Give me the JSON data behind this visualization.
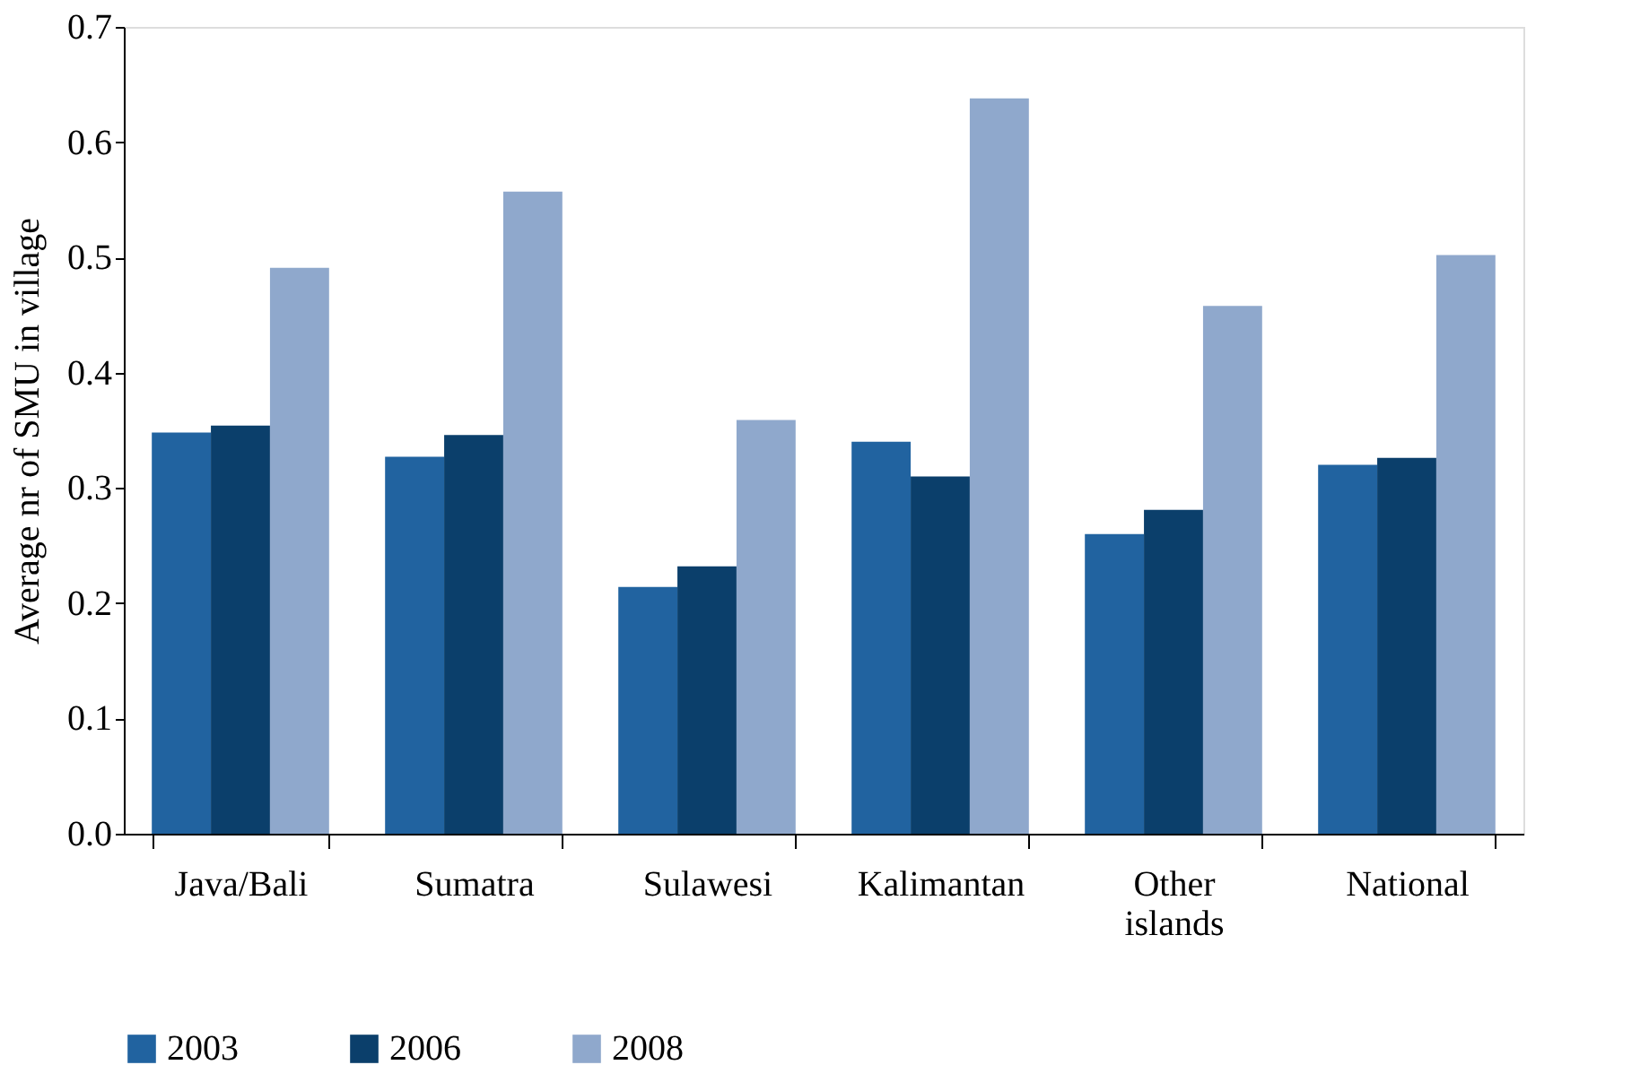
{
  "chart_data": {
    "type": "bar",
    "ylabel": "Average nr of SMU in village",
    "categories": [
      "Java/Bali",
      "Sumatra",
      "Sulawesi",
      "Kalimantan",
      "Other islands",
      "National"
    ],
    "series": [
      {
        "name": "2003",
        "color": "#2163a0",
        "values": [
          0.348,
          0.327,
          0.214,
          0.34,
          0.26,
          0.32
        ]
      },
      {
        "name": "2006",
        "color": "#0b3f6b",
        "values": [
          0.354,
          0.346,
          0.232,
          0.31,
          0.281,
          0.326
        ]
      },
      {
        "name": "2008",
        "color": "#8fa8cc",
        "values": [
          0.491,
          0.557,
          0.359,
          0.638,
          0.458,
          0.502
        ]
      }
    ],
    "ylim": [
      0,
      0.7
    ],
    "yticks": [
      {
        "value": 0,
        "label": "0.0"
      },
      0.1,
      0.2,
      0.3,
      0.4,
      0.5,
      0.6,
      0.7
    ],
    "grid": false,
    "legend": "bottom"
  }
}
